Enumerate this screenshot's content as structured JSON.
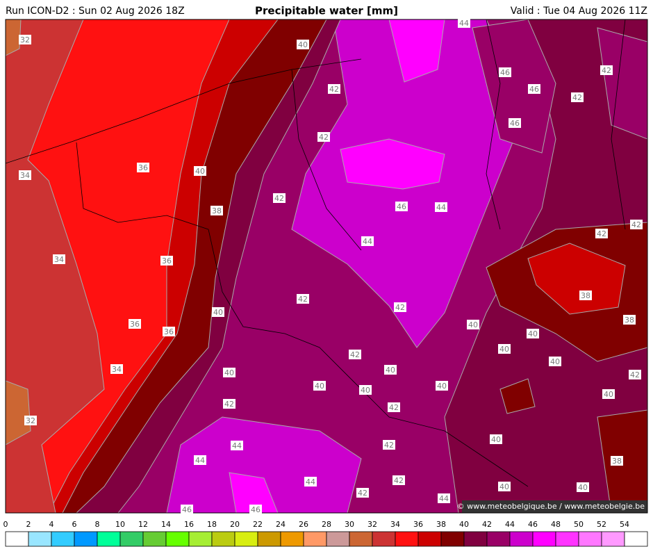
{
  "header": {
    "run": "Run ICON-D2 : Sun 02 Aug 2026 18Z",
    "title": "Precipitable water [mm]",
    "valid": "Valid : Tue 04 Aug 2026 11Z"
  },
  "contour_labels": [
    32,
    40,
    44,
    46,
    42,
    42,
    46,
    42,
    46,
    42,
    36,
    40,
    34,
    42,
    46,
    44,
    38,
    42,
    42,
    44,
    34,
    36,
    38,
    42,
    42,
    40,
    38,
    36,
    40,
    36,
    40,
    40,
    42,
    40,
    34,
    40,
    40,
    42,
    40,
    40,
    40,
    40,
    42,
    42,
    32,
    40,
    44,
    42,
    44,
    38,
    44,
    42,
    40,
    40,
    42,
    44,
    46,
    46
  ],
  "copyright": "© www.meteobelgique.be / www.meteobelgie.be",
  "legend": {
    "ticks": [
      0,
      2,
      4,
      6,
      8,
      10,
      12,
      14,
      16,
      18,
      20,
      22,
      24,
      26,
      28,
      30,
      32,
      34,
      36,
      38,
      40,
      42,
      44,
      46,
      48,
      50,
      52,
      54
    ],
    "colors": [
      "#ffffff",
      "#99e6ff",
      "#33ccff",
      "#0099ff",
      "#00ff99",
      "#33cc66",
      "#66cc33",
      "#66ff00",
      "#a6ee33",
      "#bbcc11",
      "#d8ee11",
      "#cc9900",
      "#ee9900",
      "#ff9966",
      "#cc9999",
      "#cc6633",
      "#cc3333",
      "#ff1111",
      "#cc0000",
      "#800000",
      "#800040",
      "#990066",
      "#cc00cc",
      "#ff00ff",
      "#ff33ff",
      "#ff77ff",
      "#ff99ff",
      "#ffffff"
    ]
  }
}
